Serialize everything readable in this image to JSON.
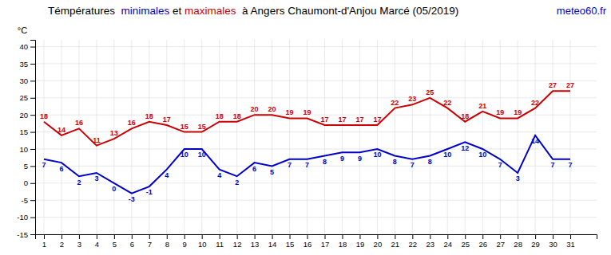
{
  "chart_data": {
    "type": "line",
    "title": "Témpératures  minimales et maximales  à Angers Chaumont-d'Anjou Marcé (05/2019)",
    "ylabel": "°C",
    "annotations": [
      {
        "text": "meteo60.fr",
        "color": "#0000cc"
      }
    ],
    "x": [
      1,
      2,
      3,
      4,
      5,
      6,
      7,
      8,
      9,
      10,
      11,
      12,
      13,
      14,
      15,
      16,
      17,
      18,
      19,
      20,
      21,
      22,
      23,
      24,
      25,
      26,
      27,
      28,
      29,
      30,
      31
    ],
    "series": [
      {
        "name": "minimales",
        "color": "#0000cc",
        "values": [
          7,
          6,
          2,
          3,
          0,
          -3,
          -1,
          4,
          10,
          10,
          4,
          2,
          6,
          5,
          7,
          7,
          8,
          9,
          9,
          10,
          8,
          7,
          8,
          10,
          12,
          10,
          7,
          3,
          14,
          7,
          7
        ]
      },
      {
        "name": "maximales",
        "color": "#cc0000",
        "values": [
          18,
          14,
          16,
          11,
          13,
          16,
          18,
          17,
          15,
          15,
          18,
          18,
          20,
          20,
          19,
          19,
          17,
          17,
          17,
          17,
          22,
          23,
          25,
          22,
          18,
          21,
          19,
          19,
          22,
          27,
          27
        ]
      }
    ],
    "xlim": [
      0.5,
      32.5
    ],
    "xticks": [
      1,
      2,
      3,
      4,
      5,
      6,
      7,
      8,
      9,
      10,
      11,
      12,
      13,
      14,
      15,
      16,
      17,
      18,
      19,
      20,
      21,
      22,
      23,
      24,
      25,
      26,
      27,
      28,
      29,
      30,
      31
    ],
    "ylim": [
      -15,
      42
    ],
    "yticks": [
      -15,
      -10,
      -5,
      0,
      5,
      10,
      15,
      20,
      25,
      30,
      35,
      40
    ],
    "grid": true,
    "data_labels": true
  }
}
